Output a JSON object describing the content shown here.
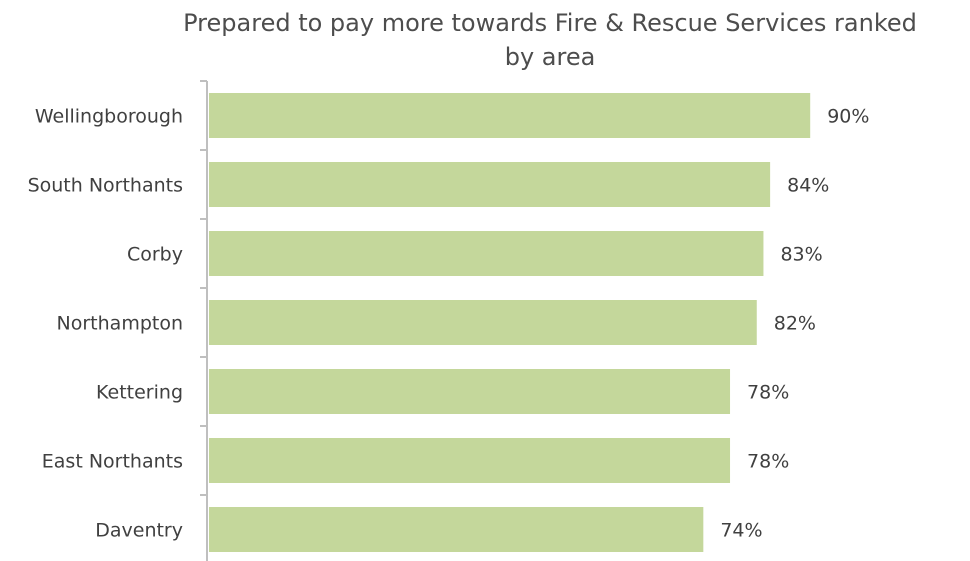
{
  "chart_data": {
    "type": "bar",
    "orientation": "horizontal",
    "title_line1": "Prepared to pay more towards Fire & Rescue Services ranked",
    "title_line2": "by area",
    "categories": [
      "Wellingborough",
      "South Northants",
      "Corby",
      "Northampton",
      "Kettering",
      "East Northants",
      "Daventry"
    ],
    "values": [
      90,
      84,
      83,
      82,
      78,
      78,
      74
    ],
    "data_labels": [
      "90%",
      "84%",
      "83%",
      "82%",
      "78%",
      "78%",
      "74%"
    ],
    "xlim": [
      0,
      100
    ],
    "grid": false,
    "legend": "none",
    "bar_color": "#c4d79b",
    "axis_color": "#bfbfbf"
  }
}
